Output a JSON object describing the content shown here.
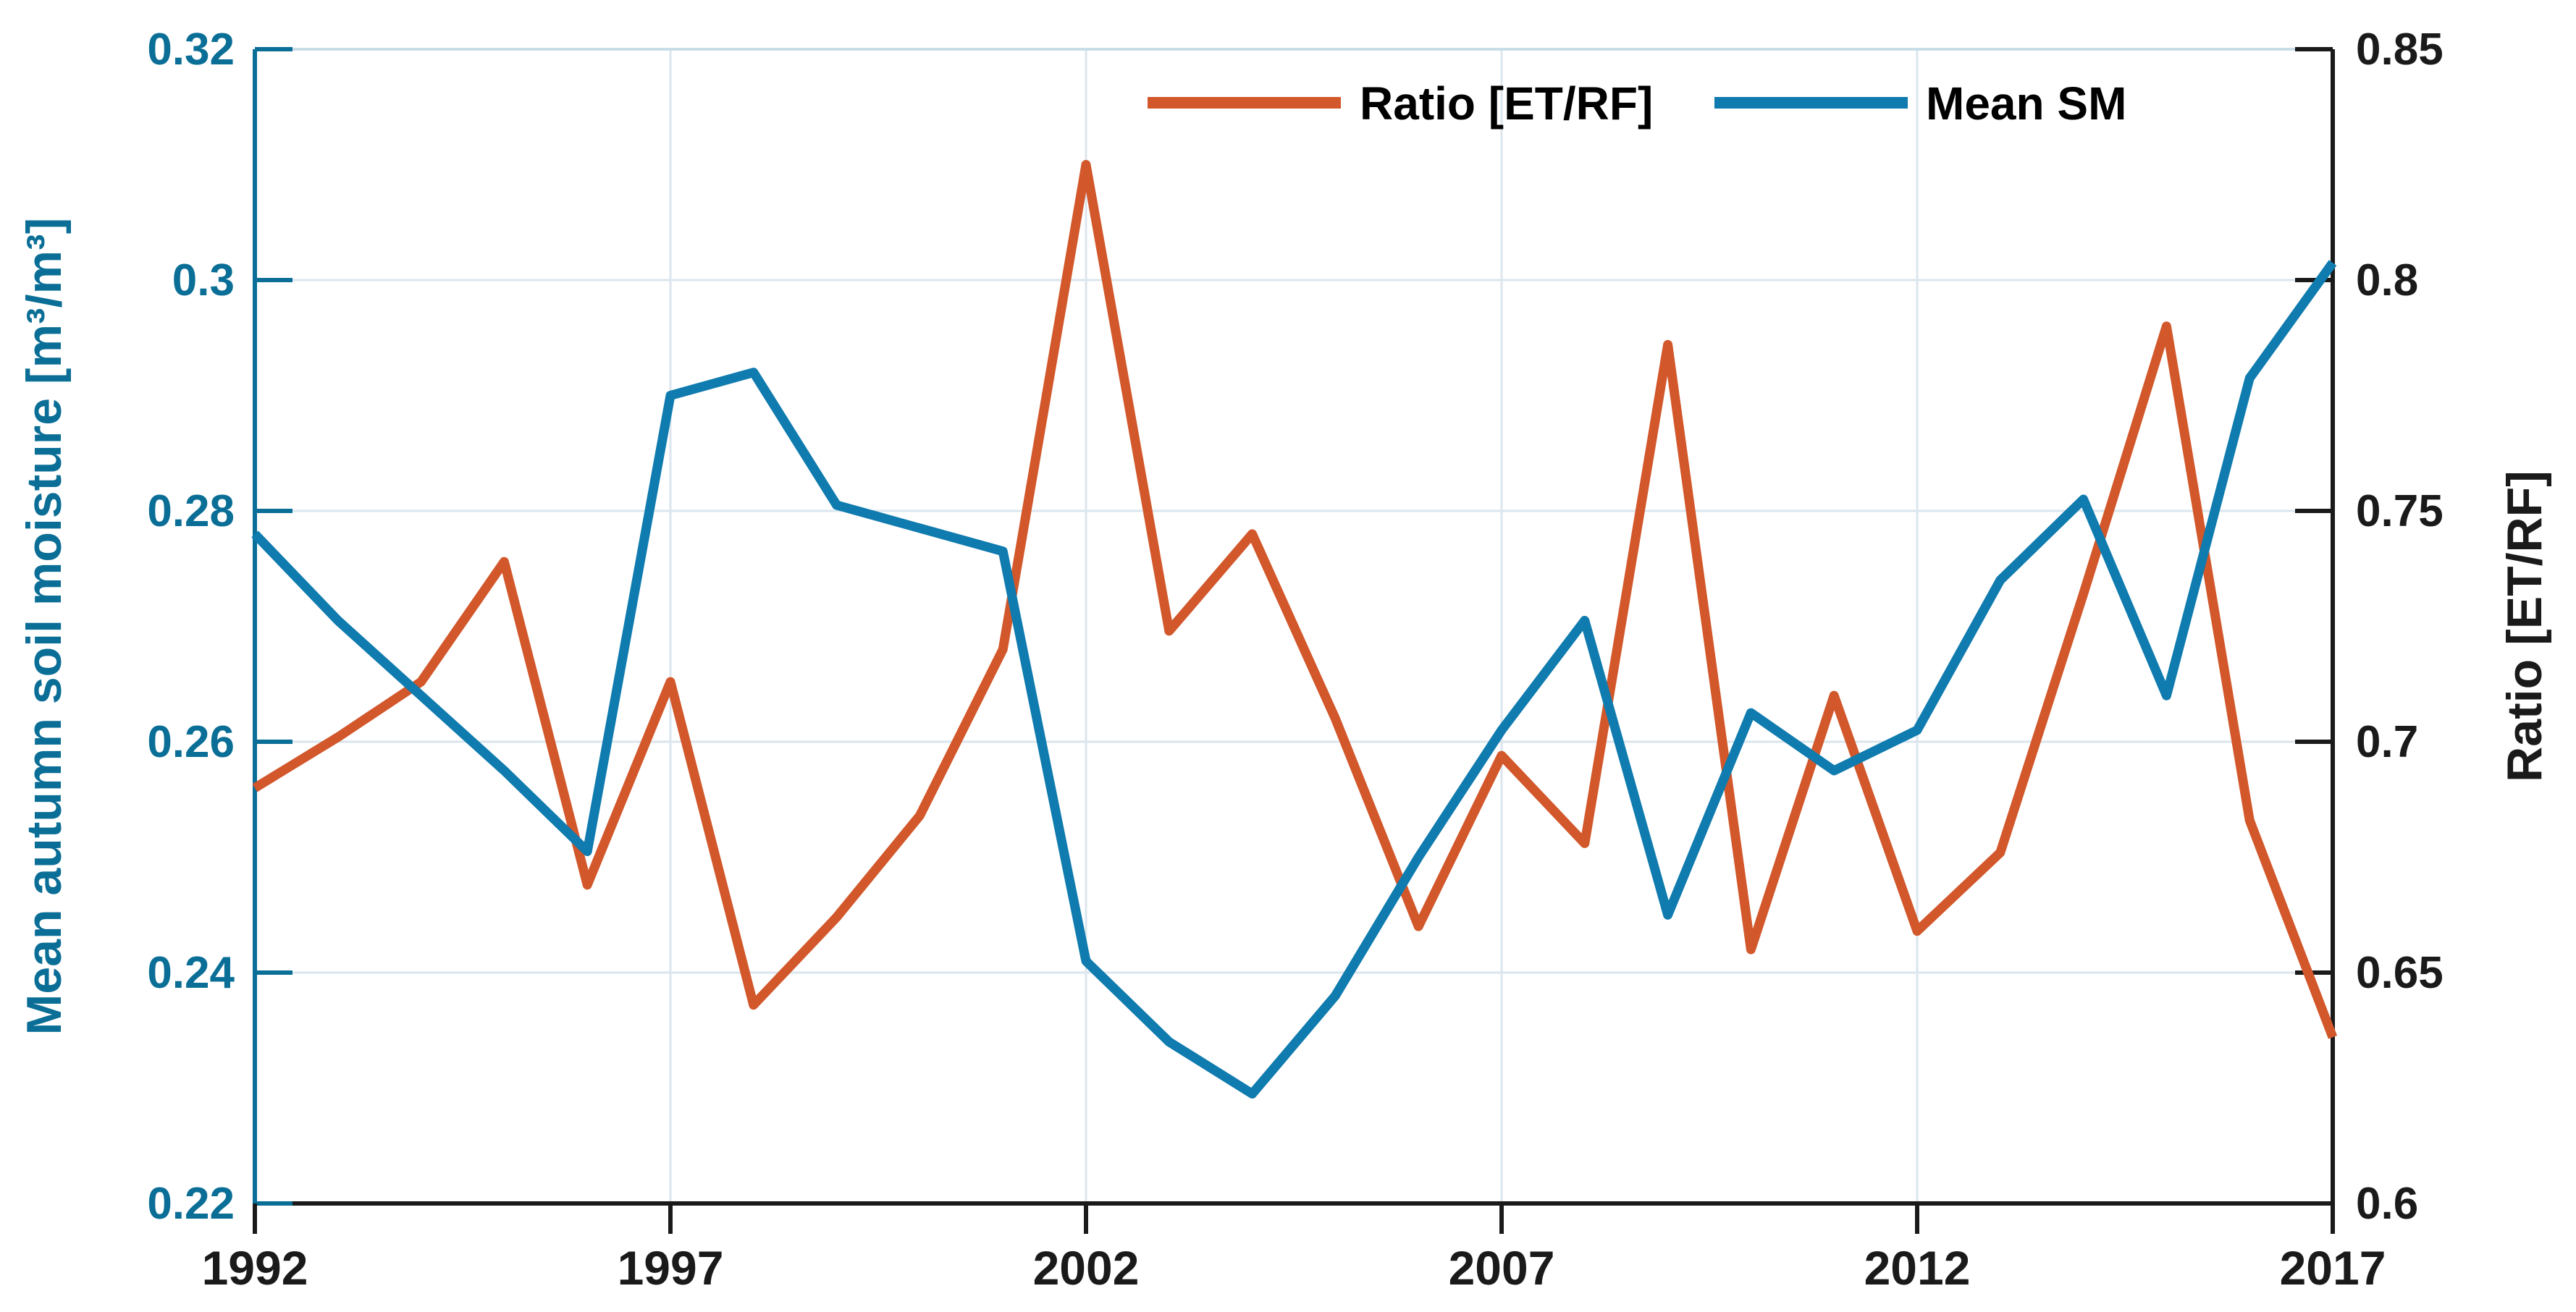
{
  "chart_data": {
    "type": "line",
    "title": "",
    "grid": true,
    "background": "#ffffff",
    "x_label": "",
    "x_range": [
      1992,
      2017
    ],
    "x": [
      1992,
      1993,
      1994,
      1995,
      1996,
      1997,
      1998,
      1999,
      2000,
      2001,
      2002,
      2003,
      2004,
      2005,
      2006,
      2007,
      2008,
      2009,
      2010,
      2011,
      2012,
      2013,
      2014,
      2015,
      2016,
      2017
    ],
    "x_ticks": [
      1992,
      1997,
      2002,
      2007,
      2012,
      2017
    ],
    "x_tick_labels": [
      "1992",
      "1997",
      "2002",
      "2007",
      "2012",
      "2017"
    ],
    "left_axis": {
      "label": "Mean autumn soil moisture [m³/m³]",
      "range": [
        0.22,
        0.32
      ],
      "ticks": [
        0.22,
        0.24,
        0.26,
        0.28,
        0.3,
        0.32
      ],
      "tick_labels": [
        "0.22",
        "0.24",
        "0.26",
        "0.28",
        "0.3",
        "0.32"
      ],
      "color": "#0A6E96"
    },
    "right_axis": {
      "label": "Ratio [ET/RF]",
      "range": [
        0.6,
        0.85
      ],
      "ticks": [
        0.6,
        0.65,
        0.7,
        0.75,
        0.8,
        0.85
      ],
      "tick_labels": [
        "0.6",
        "0.65",
        "0.7",
        "0.75",
        "0.8",
        "0.85"
      ],
      "color": "#1a1a1a"
    },
    "series": [
      {
        "name": "Ratio [ET/RF]",
        "axis": "right",
        "color": "#D2572B",
        "values": [
          0.69,
          0.701,
          0.713,
          0.739,
          0.669,
          0.713,
          0.643,
          0.662,
          0.684,
          0.72,
          0.825,
          0.724,
          0.745,
          0.705,
          0.66,
          0.697,
          0.678,
          0.786,
          0.655,
          0.71,
          0.659,
          0.676,
          0.732,
          0.79,
          0.683,
          0.636
        ]
      },
      {
        "name": "Mean SM",
        "axis": "left",
        "color": "#0F7BAE",
        "values": [
          0.278,
          0.2705,
          0.264,
          0.2575,
          0.2505,
          0.29,
          0.292,
          0.2805,
          0.2785,
          0.2765,
          0.241,
          0.234,
          0.2295,
          0.238,
          0.25,
          0.261,
          0.2705,
          0.245,
          0.2625,
          0.2575,
          0.261,
          0.274,
          0.281,
          0.264,
          0.2915,
          0.3015
        ]
      }
    ],
    "legend": {
      "position": "top",
      "entries": [
        "Ratio [ET/RF]",
        "Mean SM"
      ]
    },
    "grid_color": "#dbe6ee",
    "top_border_color": "#c9dde8",
    "dark_axis_color": "#1a1a1a"
  }
}
